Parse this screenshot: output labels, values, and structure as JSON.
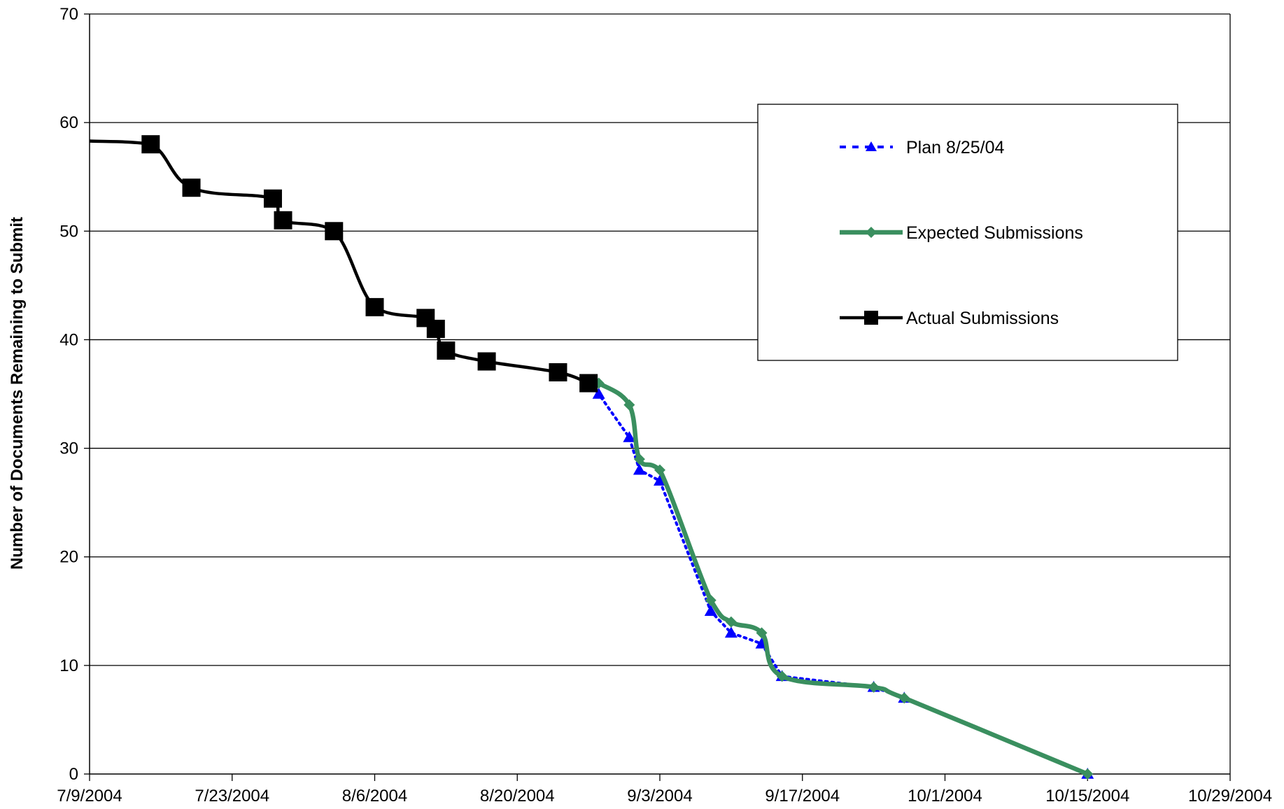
{
  "chart_data": {
    "type": "line",
    "title": "",
    "xlabel": "",
    "ylabel": "Number of Documents Remaining to Submit",
    "ylim": [
      0,
      70
    ],
    "yticks": [
      0,
      10,
      20,
      30,
      40,
      50,
      60,
      70
    ],
    "xlim": [
      "2004-07-09",
      "2004-10-29"
    ],
    "xticks": [
      {
        "date": "2004-07-09",
        "label": "7/9/2004"
      },
      {
        "date": "2004-07-23",
        "label": "7/23/2004"
      },
      {
        "date": "2004-08-06",
        "label": "8/6/2004"
      },
      {
        "date": "2004-08-20",
        "label": "8/20/2004"
      },
      {
        "date": "2004-09-03",
        "label": "9/3/2004"
      },
      {
        "date": "2004-09-17",
        "label": "9/17/2004"
      },
      {
        "date": "2004-10-01",
        "label": "10/1/2004"
      },
      {
        "date": "2004-10-15",
        "label": "10/15/2004"
      },
      {
        "date": "2004-10-29",
        "label": "10/29/2004"
      }
    ],
    "grid": "horizontal",
    "legend_position": "top-right",
    "series": [
      {
        "name": "Plan 8/25/04",
        "color": "#0000ff",
        "marker": "triangle",
        "line_style": "dotted",
        "points": [
          {
            "x": "2004-08-27",
            "y": 36
          },
          {
            "x": "2004-08-28",
            "y": 35
          },
          {
            "x": "2004-08-31",
            "y": 31
          },
          {
            "x": "2004-09-01",
            "y": 28
          },
          {
            "x": "2004-09-03",
            "y": 27
          },
          {
            "x": "2004-09-08",
            "y": 15
          },
          {
            "x": "2004-09-10",
            "y": 13
          },
          {
            "x": "2004-09-13",
            "y": 12
          },
          {
            "x": "2004-09-15",
            "y": 9
          },
          {
            "x": "2004-09-24",
            "y": 8
          },
          {
            "x": "2004-09-27",
            "y": 7
          },
          {
            "x": "2004-10-15",
            "y": 0
          }
        ]
      },
      {
        "name": "Expected Submissions",
        "color": "#3a8f5f",
        "marker": "diamond",
        "line_style": "solid",
        "points": [
          {
            "x": "2004-08-28",
            "y": 36
          },
          {
            "x": "2004-08-31",
            "y": 34
          },
          {
            "x": "2004-09-01",
            "y": 29
          },
          {
            "x": "2004-09-03",
            "y": 28
          },
          {
            "x": "2004-09-08",
            "y": 16
          },
          {
            "x": "2004-09-10",
            "y": 14
          },
          {
            "x": "2004-09-13",
            "y": 13
          },
          {
            "x": "2004-09-15",
            "y": 9
          },
          {
            "x": "2004-09-24",
            "y": 8
          },
          {
            "x": "2004-09-27",
            "y": 7
          },
          {
            "x": "2004-10-15",
            "y": 0
          }
        ]
      },
      {
        "name": "Actual Submissions",
        "color": "#000000",
        "marker": "square",
        "line_style": "solid",
        "points": [
          {
            "x": "2004-07-09",
            "y": 58.3,
            "marker": false
          },
          {
            "x": "2004-07-15",
            "y": 58
          },
          {
            "x": "2004-07-19",
            "y": 54
          },
          {
            "x": "2004-07-27",
            "y": 53
          },
          {
            "x": "2004-07-28",
            "y": 51
          },
          {
            "x": "2004-08-02",
            "y": 50
          },
          {
            "x": "2004-08-06",
            "y": 43
          },
          {
            "x": "2004-08-11",
            "y": 42
          },
          {
            "x": "2004-08-12",
            "y": 41
          },
          {
            "x": "2004-08-13",
            "y": 39
          },
          {
            "x": "2004-08-17",
            "y": 38
          },
          {
            "x": "2004-08-24",
            "y": 37
          },
          {
            "x": "2004-08-27",
            "y": 36
          }
        ]
      }
    ]
  }
}
